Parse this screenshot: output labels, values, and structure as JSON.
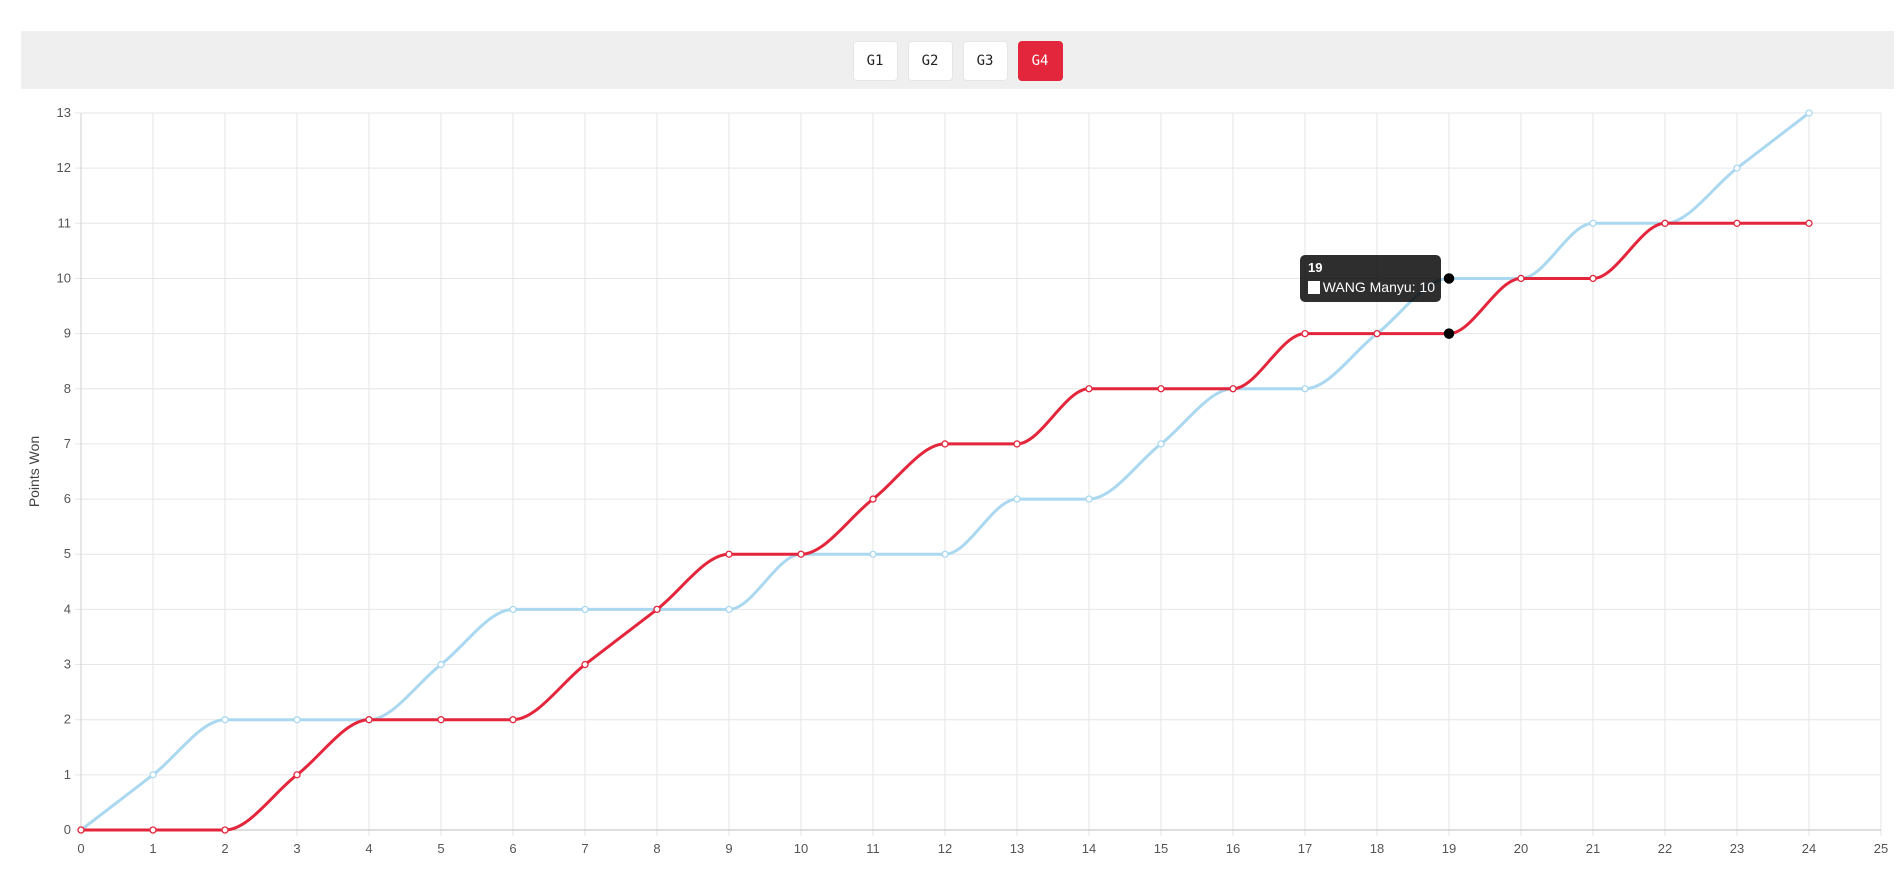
{
  "tabs": [
    {
      "label": "G1",
      "active": false
    },
    {
      "label": "G2",
      "active": false
    },
    {
      "label": "G3",
      "active": false
    },
    {
      "label": "G4",
      "active": true
    }
  ],
  "tooltip": {
    "title": "19",
    "label": "WANG Manyu: 10"
  },
  "colors": {
    "accent": "#e3263b",
    "series_red": "#e3263b",
    "series_blue": "#aad8f0"
  },
  "chart_data": {
    "type": "line",
    "title": "",
    "xlabel": "",
    "ylabel": "Points Won",
    "x": [
      0,
      1,
      2,
      3,
      4,
      5,
      6,
      7,
      8,
      9,
      10,
      11,
      12,
      13,
      14,
      15,
      16,
      17,
      18,
      19,
      20,
      21,
      22,
      23,
      24
    ],
    "xlim": [
      0,
      25
    ],
    "ylim": [
      0,
      13
    ],
    "x_ticks": [
      0,
      1,
      2,
      3,
      4,
      5,
      6,
      7,
      8,
      9,
      10,
      11,
      12,
      13,
      14,
      15,
      16,
      17,
      18,
      19,
      20,
      21,
      22,
      23,
      24,
      25
    ],
    "y_ticks": [
      0,
      1,
      2,
      3,
      4,
      5,
      6,
      7,
      8,
      9,
      10,
      11,
      12,
      13
    ],
    "grid": true,
    "series": [
      {
        "color": "#aad8f0",
        "values": [
          0,
          1,
          2,
          2,
          2,
          3,
          4,
          4,
          4,
          4,
          5,
          5,
          5,
          6,
          6,
          7,
          8,
          8,
          9,
          10,
          10,
          11,
          11,
          12,
          13
        ]
      },
      {
        "color": "#e3263b",
        "values": [
          0,
          0,
          0,
          1,
          2,
          2,
          2,
          3,
          4,
          5,
          5,
          6,
          7,
          7,
          8,
          8,
          8,
          9,
          9,
          9,
          10,
          10,
          11,
          11,
          11
        ]
      }
    ],
    "highlight_x": 19
  }
}
